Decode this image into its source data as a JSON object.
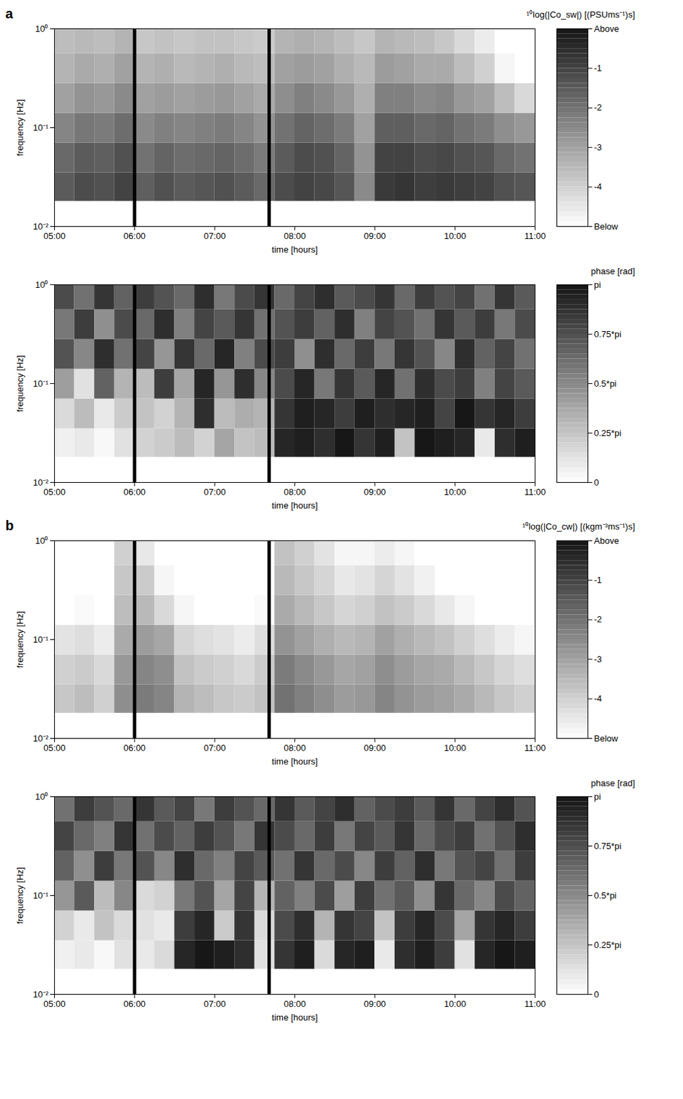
{
  "chart_data": [
    {
      "type": "heatmap",
      "panel": "a",
      "colorbar_label": "¹⁰log(|Co_sw|) [(PSUms⁻¹)s]",
      "xlabel": "time [hours]",
      "ylabel": "frequency [Hz]",
      "log": "y",
      "xlim": [
        5,
        11
      ],
      "xticks": [
        {
          "value": 5,
          "label": "05:00"
        },
        {
          "value": 6,
          "label": "06:00"
        },
        {
          "value": 7,
          "label": "07:00"
        },
        {
          "value": 8,
          "label": "08:00"
        },
        {
          "value": 9,
          "label": "09:00"
        },
        {
          "value": 10,
          "label": "10:00"
        },
        {
          "value": 11,
          "label": "11:00"
        }
      ],
      "ylim": [
        0.01,
        1
      ],
      "yticks": [
        {
          "value": 0.01,
          "label": "10⁻²"
        },
        {
          "value": 0.1,
          "label": "10⁻¹"
        },
        {
          "value": 1,
          "label": "10⁰"
        }
      ],
      "x": [
        5,
        5.25,
        5.5,
        5.75,
        6,
        6.25,
        6.5,
        6.75,
        7,
        7.25,
        7.5,
        7.75,
        8,
        8.25,
        8.5,
        8.75,
        9,
        9.25,
        9.5,
        9.75,
        10,
        10.25,
        10.5,
        10.75,
        11
      ],
      "y": [
        0.018,
        0.035,
        0.07,
        0.14,
        0.28,
        0.56,
        1
      ],
      "values": [
        [
          -1.5,
          -1.2,
          -1.3,
          -1.0,
          -1.6,
          -1.3,
          -1.5,
          -1.4,
          -1.3,
          -1.5,
          -1.8,
          -1.2,
          -1.0,
          -1.1,
          -1.4,
          -2.5,
          -0.8,
          -0.7,
          -0.9,
          -0.8,
          -0.9,
          -1.0,
          -1.3,
          -1.4
        ],
        [
          -1.8,
          -1.5,
          -1.6,
          -1.3,
          -2.0,
          -1.7,
          -1.9,
          -1.8,
          -1.7,
          -1.9,
          -2.2,
          -1.5,
          -1.2,
          -1.3,
          -1.7,
          -2.7,
          -1.0,
          -1.0,
          -1.2,
          -1.1,
          -1.3,
          -1.4,
          -1.8,
          -2.0
        ],
        [
          -2.4,
          -2.1,
          -2.2,
          -1.9,
          -2.5,
          -2.3,
          -2.4,
          -2.3,
          -2.2,
          -2.4,
          -2.7,
          -2.0,
          -1.7,
          -1.9,
          -2.2,
          -3.0,
          -1.6,
          -1.6,
          -1.8,
          -1.7,
          -2.0,
          -2.2,
          -2.6,
          -2.8
        ],
        [
          -3.0,
          -2.7,
          -2.8,
          -2.5,
          -3.0,
          -2.9,
          -3.0,
          -2.9,
          -2.8,
          -3.0,
          -3.2,
          -2.6,
          -2.3,
          -2.5,
          -2.8,
          -3.3,
          -2.3,
          -2.3,
          -2.5,
          -2.4,
          -2.8,
          -3.0,
          -3.6,
          -4.2
        ],
        [
          -3.4,
          -3.2,
          -3.3,
          -3.0,
          -3.4,
          -3.3,
          -3.5,
          -3.4,
          -3.3,
          -3.5,
          -3.6,
          -3.0,
          -2.9,
          -3.0,
          -3.3,
          -3.5,
          -2.9,
          -3.0,
          -3.2,
          -3.2,
          -3.6,
          -4.0,
          -4.8,
          -5.0
        ],
        [
          -3.6,
          -3.5,
          -3.6,
          -3.4,
          -3.8,
          -3.7,
          -3.8,
          -3.7,
          -3.7,
          -3.8,
          -3.9,
          -3.4,
          -3.3,
          -3.4,
          -3.6,
          -3.8,
          -3.4,
          -3.5,
          -3.6,
          -3.8,
          -4.2,
          -4.6,
          -5.0,
          -5.0
        ]
      ],
      "color_range": [
        -5,
        0
      ],
      "color_ticks": [
        {
          "value": 0,
          "label": "Above"
        },
        -1,
        -2,
        -3,
        -4,
        {
          "value": -5,
          "label": "Below"
        }
      ],
      "vertical_lines": [
        6,
        7.68
      ]
    },
    {
      "type": "heatmap",
      "colorbar_label": "phase [rad]",
      "xlabel": "time [hours]",
      "ylabel": "frequency [Hz]",
      "log": "y",
      "xlim": [
        5,
        11
      ],
      "xticks": [
        {
          "value": 5,
          "label": "05:00"
        },
        {
          "value": 6,
          "label": "06:00"
        },
        {
          "value": 7,
          "label": "07:00"
        },
        {
          "value": 8,
          "label": "08:00"
        },
        {
          "value": 9,
          "label": "09:00"
        },
        {
          "value": 10,
          "label": "10:00"
        },
        {
          "value": 11,
          "label": "11:00"
        }
      ],
      "ylim": [
        0.01,
        1
      ],
      "yticks": [
        {
          "value": 0.01,
          "label": "10⁻²"
        },
        {
          "value": 0.1,
          "label": "10⁻¹"
        },
        {
          "value": 1,
          "label": "10⁰"
        }
      ],
      "x": [
        5,
        5.25,
        5.5,
        5.75,
        6,
        6.25,
        6.5,
        6.75,
        7,
        7.25,
        7.5,
        7.75,
        8,
        8.25,
        8.5,
        8.75,
        9,
        9.25,
        9.5,
        9.75,
        10,
        10.25,
        10.5,
        10.75,
        11
      ],
      "y": [
        0.018,
        0.035,
        0.07,
        0.14,
        0.28,
        0.56,
        1
      ],
      "values": [
        [
          0.2,
          0.3,
          0.1,
          0.4,
          0.6,
          0.7,
          0.9,
          0.6,
          1.2,
          0.8,
          0.9,
          2.9,
          3.0,
          2.8,
          3.1,
          2.7,
          3.0,
          0.8,
          3.1,
          3.0,
          2.9,
          0.3,
          2.8,
          3.0
        ],
        [
          0.5,
          0.9,
          0.3,
          0.7,
          0.8,
          0.6,
          1.0,
          2.8,
          0.9,
          1.1,
          1.0,
          2.7,
          3.0,
          2.9,
          2.6,
          3.0,
          2.8,
          2.9,
          3.0,
          2.5,
          3.1,
          2.7,
          2.9,
          2.6
        ],
        [
          1.3,
          0.4,
          2.1,
          1.0,
          0.9,
          2.6,
          1.2,
          2.9,
          1.4,
          2.8,
          1.6,
          2.4,
          2.9,
          1.8,
          2.7,
          2.2,
          2.9,
          1.9,
          2.8,
          2.4,
          2.6,
          1.7,
          2.5,
          2.2
        ],
        [
          2.3,
          1.6,
          2.8,
          1.9,
          2.5,
          1.4,
          2.7,
          2.0,
          2.9,
          1.7,
          2.4,
          2.6,
          1.5,
          2.8,
          2.0,
          2.6,
          1.8,
          2.7,
          2.3,
          1.6,
          2.8,
          2.1,
          2.5,
          1.9
        ],
        [
          1.8,
          2.6,
          1.5,
          2.4,
          2.0,
          2.8,
          1.7,
          2.5,
          2.2,
          2.7,
          1.9,
          2.3,
          2.6,
          2.1,
          2.8,
          1.7,
          2.5,
          2.3,
          1.9,
          2.7,
          2.2,
          2.6,
          1.8,
          2.4
        ],
        [
          2.4,
          1.9,
          2.7,
          2.1,
          2.6,
          2.3,
          2.0,
          2.8,
          1.8,
          2.4,
          2.7,
          2.0,
          2.5,
          2.8,
          2.2,
          2.4,
          2.7,
          2.0,
          2.6,
          2.3,
          2.5,
          1.9,
          2.7,
          2.2
        ]
      ],
      "color_range": [
        0,
        3.1416
      ],
      "color_ticks": [
        0,
        {
          "value": 0.7854,
          "label": "0.25*pi"
        },
        {
          "value": 1.5708,
          "label": "0.5*pi"
        },
        {
          "value": 2.3562,
          "label": "0.75*pi"
        },
        {
          "value": 3.1416,
          "label": "pi"
        }
      ],
      "vertical_lines": [
        6,
        7.68
      ]
    },
    {
      "type": "heatmap",
      "panel": "b",
      "colorbar_label": "¹⁰log(|Co_cw|) [(kgm⁻³ms⁻¹)s]",
      "xlabel": "time [hours]",
      "ylabel": "frequency [Hz]",
      "log": "y",
      "xlim": [
        5,
        11
      ],
      "xticks": [
        {
          "value": 5,
          "label": "05:00"
        },
        {
          "value": 6,
          "label": "06:00"
        },
        {
          "value": 7,
          "label": "07:00"
        },
        {
          "value": 8,
          "label": "08:00"
        },
        {
          "value": 9,
          "label": "09:00"
        },
        {
          "value": 10,
          "label": "10:00"
        },
        {
          "value": 11,
          "label": "11:00"
        }
      ],
      "ylim": [
        0.01,
        1
      ],
      "yticks": [
        {
          "value": 0.01,
          "label": "10⁻²"
        },
        {
          "value": 0.1,
          "label": "10⁻¹"
        },
        {
          "value": 1,
          "label": "10⁰"
        }
      ],
      "x": [
        5,
        5.25,
        5.5,
        5.75,
        6,
        6.25,
        6.5,
        6.75,
        7,
        7.25,
        7.5,
        7.75,
        8,
        8.25,
        8.5,
        8.75,
        9,
        9.25,
        9.5,
        9.75,
        10,
        10.25,
        10.5,
        10.75,
        11
      ],
      "y": [
        0.018,
        0.035,
        0.07,
        0.14,
        0.28,
        0.56,
        1
      ],
      "values": [
        [
          -3.8,
          -3.6,
          -4.0,
          -2.6,
          -2.2,
          -2.4,
          -3.4,
          -3.6,
          -3.8,
          -3.9,
          -3.7,
          -2.0,
          -2.3,
          -2.6,
          -2.9,
          -2.8,
          -2.4,
          -2.7,
          -2.9,
          -3.0,
          -3.2,
          -3.5,
          -3.8,
          -4.0
        ],
        [
          -4.0,
          -3.9,
          -4.2,
          -2.8,
          -2.4,
          -2.6,
          -3.7,
          -3.9,
          -4.0,
          -4.2,
          -3.9,
          -2.2,
          -2.5,
          -2.8,
          -3.1,
          -3.0,
          -2.6,
          -2.9,
          -3.1,
          -3.2,
          -3.5,
          -3.8,
          -4.1,
          -4.3
        ],
        [
          -4.4,
          -4.3,
          -4.6,
          -3.2,
          -2.9,
          -3.1,
          -4.1,
          -4.3,
          -4.4,
          -4.6,
          -4.3,
          -2.7,
          -3.0,
          -3.3,
          -3.5,
          -3.4,
          -3.0,
          -3.3,
          -3.5,
          -3.7,
          -4.0,
          -4.3,
          -4.6,
          -4.8
        ],
        [
          -5.0,
          -4.9,
          -5.0,
          -3.6,
          -3.5,
          -4.2,
          -4.8,
          -5.0,
          -5.0,
          -5.0,
          -4.9,
          -3.2,
          -3.5,
          -3.8,
          -4.1,
          -4.0,
          -3.7,
          -3.9,
          -4.2,
          -4.5,
          -4.8,
          -5.0,
          -5.0,
          -5.0
        ],
        [
          -5.0,
          -5.0,
          -5.0,
          -3.8,
          -3.9,
          -4.8,
          -5.0,
          -5.0,
          -5.0,
          -5.0,
          -5.0,
          -3.5,
          -3.8,
          -4.1,
          -4.5,
          -4.4,
          -4.1,
          -4.4,
          -4.7,
          -5.0,
          -5.0,
          -5.0,
          -5.0,
          -5.0
        ],
        [
          -5.0,
          -5.0,
          -5.0,
          -4.0,
          -4.5,
          -5.0,
          -5.0,
          -5.0,
          -5.0,
          -5.0,
          -5.0,
          -3.7,
          -4.0,
          -4.4,
          -4.8,
          -4.8,
          -4.6,
          -4.8,
          -5.0,
          -5.0,
          -5.0,
          -5.0,
          -5.0,
          -5.0
        ]
      ],
      "color_range": [
        -5,
        0
      ],
      "color_ticks": [
        {
          "value": 0,
          "label": "Above"
        },
        -1,
        -2,
        -3,
        -4,
        {
          "value": -5,
          "label": "Below"
        }
      ],
      "vertical_lines": [
        6,
        7.68
      ]
    },
    {
      "type": "heatmap",
      "colorbar_label": "phase [rad]",
      "xlabel": "time [hours]",
      "ylabel": "frequency [Hz]",
      "log": "y",
      "xlim": [
        5,
        11
      ],
      "xticks": [
        {
          "value": 5,
          "label": "05:00"
        },
        {
          "value": 6,
          "label": "06:00"
        },
        {
          "value": 7,
          "label": "07:00"
        },
        {
          "value": 8,
          "label": "08:00"
        },
        {
          "value": 9,
          "label": "09:00"
        },
        {
          "value": 10,
          "label": "10:00"
        },
        {
          "value": 11,
          "label": "11:00"
        }
      ],
      "ylim": [
        0.01,
        1
      ],
      "yticks": [
        {
          "value": 0.01,
          "label": "10⁻²"
        },
        {
          "value": 0.1,
          "label": "10⁻¹"
        },
        {
          "value": 1,
          "label": "10⁰"
        }
      ],
      "x": [
        5,
        5.25,
        5.5,
        5.75,
        6,
        6.25,
        6.5,
        6.75,
        7,
        7.25,
        7.5,
        7.75,
        8,
        8.25,
        8.5,
        8.75,
        9,
        9.25,
        9.5,
        9.75,
        10,
        10.25,
        10.5,
        10.75,
        11
      ],
      "y": [
        0.018,
        0.035,
        0.07,
        0.14,
        0.28,
        0.56,
        1
      ],
      "values": [
        [
          0.2,
          0.3,
          0.1,
          0.4,
          0.3,
          0.5,
          2.9,
          3.1,
          3.0,
          2.8,
          0.4,
          2.7,
          3.0,
          0.5,
          2.9,
          3.0,
          0.3,
          2.8,
          3.0,
          2.6,
          0.4,
          2.9,
          3.1,
          3.0
        ],
        [
          0.6,
          0.3,
          0.8,
          0.5,
          0.4,
          0.3,
          2.6,
          2.9,
          0.7,
          2.7,
          0.5,
          2.4,
          2.8,
          1.0,
          2.7,
          2.5,
          0.8,
          2.6,
          2.9,
          2.4,
          1.2,
          2.7,
          2.9,
          2.6
        ],
        [
          1.4,
          2.2,
          0.9,
          1.6,
          0.5,
          0.6,
          1.8,
          2.3,
          1.2,
          2.5,
          1.0,
          2.1,
          1.7,
          2.4,
          1.3,
          2.6,
          1.9,
          2.2,
          1.5,
          2.7,
          2.0,
          1.6,
          2.4,
          2.1
        ],
        [
          2.1,
          1.5,
          2.6,
          1.8,
          2.3,
          1.6,
          2.8,
          2.0,
          1.7,
          2.5,
          2.2,
          1.9,
          2.7,
          2.0,
          2.4,
          1.6,
          2.6,
          2.1,
          2.8,
          1.8,
          2.3,
          2.5,
          1.9,
          2.6
        ],
        [
          2.5,
          2.0,
          1.7,
          2.7,
          1.9,
          2.4,
          2.1,
          2.6,
          2.3,
          1.8,
          2.7,
          2.4,
          2.0,
          2.6,
          1.8,
          2.5,
          2.2,
          2.7,
          2.0,
          2.4,
          2.6,
          1.9,
          2.3,
          2.8
        ],
        [
          1.9,
          2.6,
          2.3,
          2.0,
          2.7,
          2.2,
          2.5,
          1.8,
          2.6,
          2.3,
          2.0,
          2.7,
          2.2,
          2.5,
          2.8,
          2.1,
          2.4,
          2.6,
          2.2,
          2.7,
          2.0,
          2.5,
          2.8,
          2.3
        ]
      ],
      "color_range": [
        0,
        3.1416
      ],
      "color_ticks": [
        0,
        {
          "value": 0.7854,
          "label": "0.25*pi"
        },
        {
          "value": 1.5708,
          "label": "0.5*pi"
        },
        {
          "value": 2.3562,
          "label": "0.75*pi"
        },
        {
          "value": 3.1416,
          "label": "pi"
        }
      ],
      "vertical_lines": [
        6,
        7.68
      ]
    }
  ]
}
